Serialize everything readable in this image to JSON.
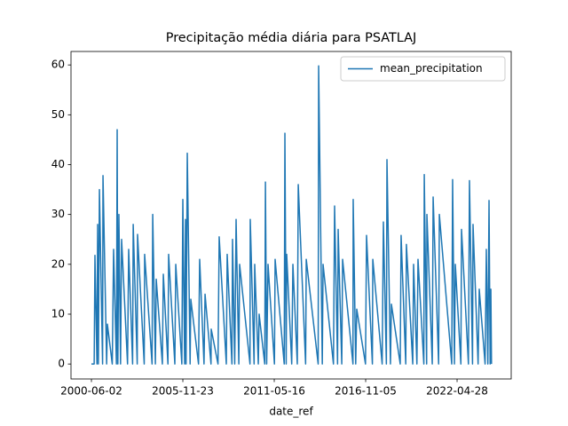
{
  "chart_data": {
    "type": "line",
    "title": "Precipitação média diária para PSATLAJ",
    "xlabel": "date_ref",
    "x": [
      "2000-06-02",
      "2000-08-01",
      "2000-08-18",
      "2000-10-01",
      "2000-10-16",
      "2000-11-01",
      "2000-11-24",
      "2001-02-01",
      "2001-02-10",
      "2001-05-01",
      "2001-05-17",
      "2001-09-01",
      "2001-09-30",
      "2001-12-01",
      "2001-12-17",
      "2002-01-01",
      "2002-01-24",
      "2002-03-01",
      "2002-03-24",
      "2002-08-01",
      "2002-08-26",
      "2002-11-20",
      "2002-12-03",
      "2003-03-01",
      "2003-03-08",
      "2003-08-01",
      "2003-08-10",
      "2004-01-20",
      "2004-02-03",
      "2004-04-01",
      "2004-04-20",
      "2004-09-01",
      "2004-09-22",
      "2005-01-01",
      "2005-01-16",
      "2005-06-01",
      "2005-06-21",
      "2005-11-01",
      "2005-11-23",
      "2006-01-01",
      "2006-01-20",
      "2006-02-01",
      "2006-02-28",
      "2006-05-01",
      "2006-05-16",
      "2006-11-01",
      "2006-11-26",
      "2007-03-01",
      "2007-03-24",
      "2007-08-01",
      "2007-08-06",
      "2008-01-01",
      "2008-01-27",
      "2008-07-01",
      "2008-07-20",
      "2008-11-01",
      "2008-11-14",
      "2009-01-01",
      "2009-01-31",
      "2009-04-01",
      "2009-04-18",
      "2009-12-01",
      "2009-12-07",
      "2010-03-01",
      "2010-03-14",
      "2010-06-01",
      "2010-06-19",
      "2010-10-20",
      "2010-11-04",
      "2010-12-01",
      "2010-12-31",
      "2011-05-20",
      "2011-06-04",
      "2011-12-20",
      "2012-01-04",
      "2012-02-01",
      "2012-02-12",
      "2012-06-01",
      "2012-06-27",
      "2012-10-01",
      "2012-10-22",
      "2013-04-01",
      "2013-04-15",
      "2014-01-01",
      "2014-01-11",
      "2014-04-01",
      "2014-04-18",
      "2014-12-01",
      "2014-12-26",
      "2015-03-01",
      "2015-03-14",
      "2015-06-01",
      "2015-06-19",
      "2016-02-01",
      "2016-02-06",
      "2016-04-01",
      "2016-04-24",
      "2016-11-01",
      "2016-11-24",
      "2017-04-01",
      "2017-04-10",
      "2017-11-01",
      "2017-11-28",
      "2018-02-01",
      "2018-02-14",
      "2018-05-01",
      "2018-05-22",
      "2018-12-01",
      "2018-12-20",
      "2019-04-01",
      "2019-04-15",
      "2019-09-01",
      "2019-09-19",
      "2019-12-01",
      "2019-12-25",
      "2020-05-01",
      "2020-05-10",
      "2020-07-01",
      "2020-07-07",
      "2020-11-01",
      "2020-11-20",
      "2021-03-20",
      "2021-04-05",
      "2022-01-01",
      "2022-01-20",
      "2022-03-01",
      "2022-03-20",
      "2022-07-20",
      "2022-08-03",
      "2023-01-01",
      "2023-01-24",
      "2023-04-01",
      "2023-04-12",
      "2023-08-01",
      "2023-08-26",
      "2024-01-01",
      "2024-01-28",
      "2024-03-01",
      "2024-03-27",
      "2024-04-20",
      "2024-05-06",
      "2024-05-20"
    ],
    "series": [
      {
        "name": "mean_precipitation",
        "color": "#1f77b4",
        "values": [
          0,
          0,
          21.8,
          0,
          28,
          0,
          35,
          0,
          37.8,
          0,
          8,
          0,
          23,
          0,
          47,
          0,
          30,
          0,
          25,
          0,
          23,
          0,
          28,
          0,
          26,
          0,
          22,
          0,
          30,
          0,
          17,
          0,
          18,
          0,
          22,
          0,
          20,
          0,
          33,
          0,
          29,
          0,
          42.3,
          0,
          13,
          0,
          21,
          0,
          14,
          0,
          7,
          0,
          25.5,
          0,
          22,
          0,
          25,
          0,
          29,
          0,
          20,
          0,
          29,
          0,
          20,
          0,
          10,
          0,
          36.5,
          0,
          20,
          0,
          21,
          0,
          46.3,
          0,
          22,
          0,
          20,
          0,
          36,
          0,
          21,
          0,
          59.8,
          0,
          20,
          0,
          31.7,
          0,
          27,
          0,
          21,
          0,
          33,
          0,
          11,
          0,
          25.8,
          0,
          21,
          0,
          28.5,
          0,
          41,
          0,
          12,
          0,
          25.8,
          0,
          24,
          0,
          20,
          0,
          21,
          0,
          38,
          0,
          30,
          0,
          33.5,
          0,
          30,
          0,
          37,
          0,
          20,
          0,
          27,
          0,
          36.8,
          0,
          28,
          0,
          15,
          0,
          23,
          0,
          32.8,
          0,
          15,
          0
        ]
      }
    ],
    "xlim": [
      "1999-03-13",
      "2025-07-25"
    ],
    "xticks": [
      "2000-06-02",
      "2005-11-23",
      "2011-05-16",
      "2016-11-05",
      "2022-04-28"
    ],
    "ylim": [
      -3,
      62.7
    ],
    "yticks": [
      0,
      10,
      20,
      30,
      40,
      50,
      60
    ],
    "legend": "upper right",
    "grid": false
  }
}
